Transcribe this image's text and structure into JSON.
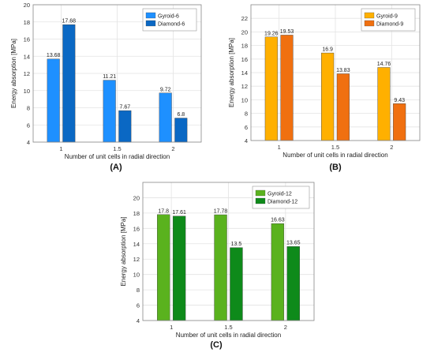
{
  "chart_data": [
    {
      "type": "bar",
      "panel_label": "(A)",
      "categories": [
        "1",
        "1.5",
        "2"
      ],
      "xlabel": "Number of unit cells in radial direction",
      "ylabel": "Energy absorption [MPa]",
      "ylim": [
        4,
        20
      ],
      "yticks": [
        "4",
        "6",
        "8",
        "10",
        "12",
        "14",
        "16",
        "18",
        "20"
      ],
      "grid": true,
      "legend_position": "top-right",
      "series": [
        {
          "name": "Gyroid-6",
          "values": [
            13.68,
            11.21,
            9.72
          ],
          "labels": [
            "13.68",
            "11.21",
            "9.72"
          ],
          "color": "#1e90ff"
        },
        {
          "name": "Diamond-6",
          "values": [
            17.68,
            7.67,
            6.8
          ],
          "labels": [
            "17.68",
            "7.67",
            "6.8"
          ],
          "color": "#0a68c4"
        }
      ]
    },
    {
      "type": "bar",
      "panel_label": "(B)",
      "categories": [
        "1",
        "1.5",
        "2"
      ],
      "xlabel": "Number of unit cells in radial direction",
      "ylabel": "Energy absorption [MPa]",
      "ylim": [
        4,
        24
      ],
      "yticks": [
        "4",
        "6",
        "8",
        "10",
        "12",
        "14",
        "16",
        "18",
        "20",
        "22"
      ],
      "grid": true,
      "legend_position": "top-right",
      "series": [
        {
          "name": "Gyroid-9",
          "values": [
            19.26,
            16.9,
            14.76
          ],
          "labels": [
            "19.26",
            "16.9",
            "14.76"
          ],
          "color": "#ffb000"
        },
        {
          "name": "Diamond-9",
          "values": [
            19.53,
            13.83,
            9.43
          ],
          "labels": [
            "19.53",
            "13.83",
            "9.43"
          ],
          "color": "#f07010"
        }
      ]
    },
    {
      "type": "bar",
      "panel_label": "(C)",
      "categories": [
        "1",
        "1.5",
        "2"
      ],
      "xlabel": "Number of unit cells in radial direction",
      "ylabel": "Energy absorption [MPa]",
      "ylim": [
        4,
        22
      ],
      "yticks": [
        "4",
        "6",
        "8",
        "10",
        "12",
        "14",
        "16",
        "18",
        "20"
      ],
      "grid": true,
      "legend_position": "top-right",
      "series": [
        {
          "name": "Gyroid-12",
          "values": [
            17.8,
            17.78,
            16.63
          ],
          "labels": [
            "17.8",
            "17.78",
            "16.63"
          ],
          "color": "#5ab21e"
        },
        {
          "name": "Diamond-12",
          "values": [
            17.61,
            13.5,
            13.65
          ],
          "labels": [
            "17.61",
            "13.5",
            "13.65"
          ],
          "color": "#0e8a1a"
        }
      ]
    }
  ]
}
